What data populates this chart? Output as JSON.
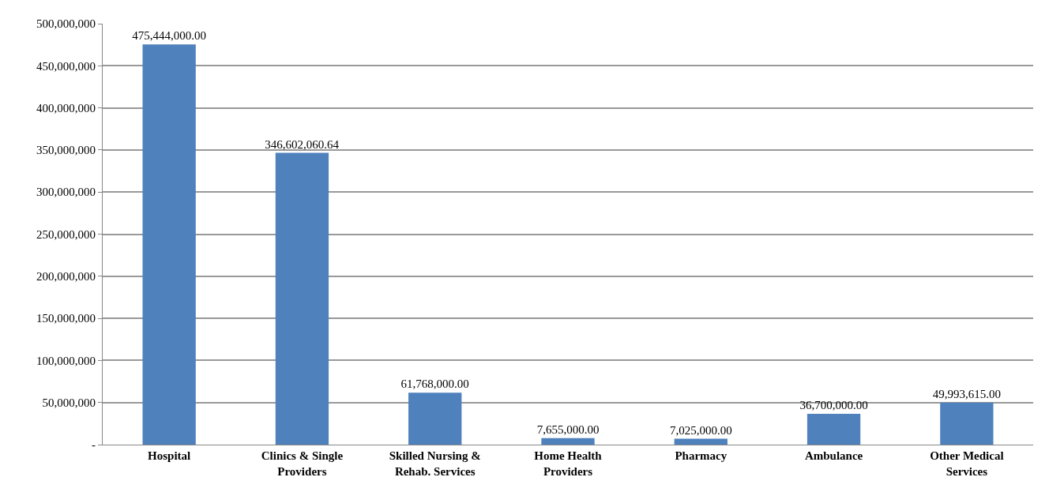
{
  "chart_data": {
    "type": "bar",
    "categories": [
      "Hospital",
      "Clinics & Single\nProviders",
      "Skilled Nursing &\nRehab. Services",
      "Home Health\nProviders",
      "Pharmacy",
      "Ambulance",
      "Other Medical\nServices"
    ],
    "values": [
      475444000,
      346602060.64,
      61768000,
      7655000,
      7025000,
      36700000,
      49993615
    ],
    "value_labels": [
      "475,444,000.00",
      "346,602,060.64",
      "61,768,000.00",
      "7,655,000.00",
      "7,025,000.00",
      "36,700,000.00",
      "49,993,615.00"
    ],
    "color": "#4f81bd",
    "ylim": [
      0,
      500000000
    ],
    "yticks": [
      {
        "value": 0,
        "label": "-"
      },
      {
        "value": 50000000,
        "label": "50,000,000"
      },
      {
        "value": 100000000,
        "label": "100,000,000"
      },
      {
        "value": 150000000,
        "label": "150,000,000"
      },
      {
        "value": 200000000,
        "label": "200,000,000"
      },
      {
        "value": 250000000,
        "label": "250,000,000"
      },
      {
        "value": 300000000,
        "label": "300,000,000"
      },
      {
        "value": 350000000,
        "label": "350,000,000"
      },
      {
        "value": 400000000,
        "label": "400,000,000"
      },
      {
        "value": 450000000,
        "label": "450,000,000"
      },
      {
        "value": 500000000,
        "label": "500,000,000"
      }
    ],
    "grid": "y"
  }
}
